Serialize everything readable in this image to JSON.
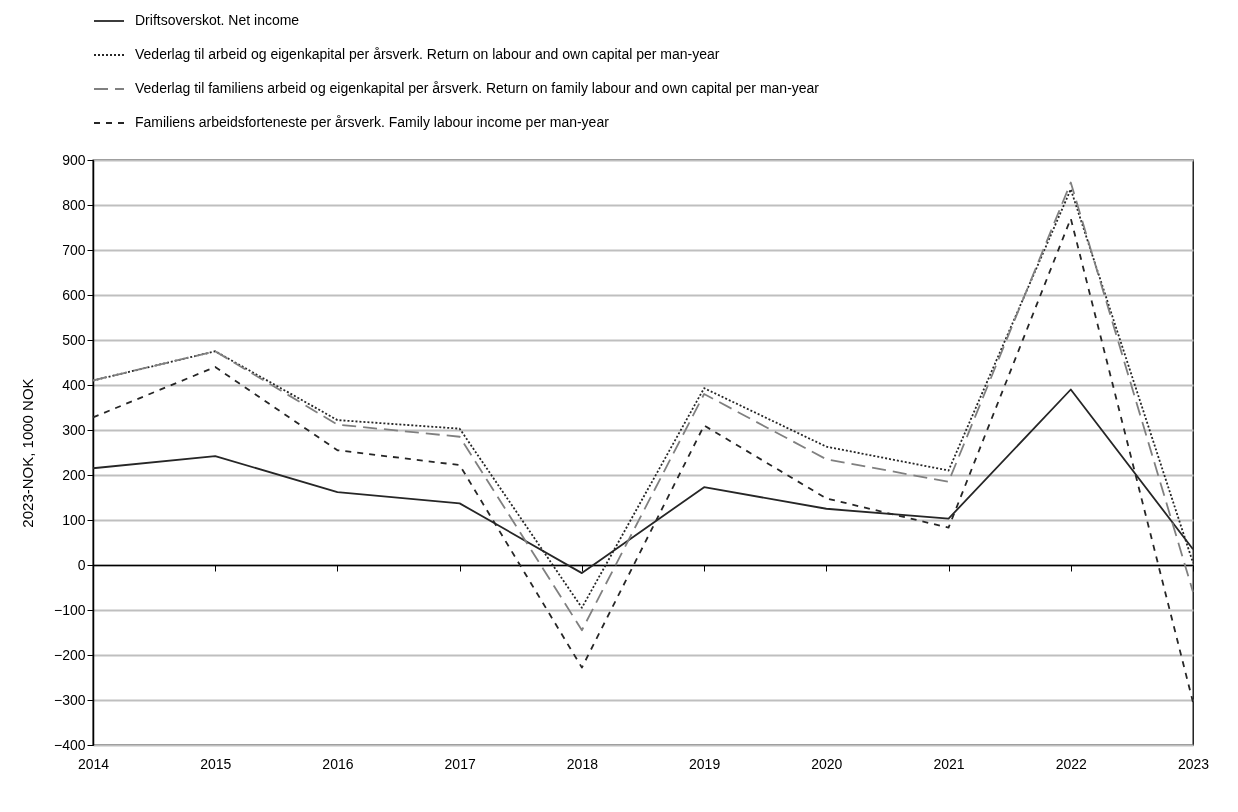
{
  "chart_data": {
    "type": "line",
    "ylabel": "2023-NOK, 1000 NOK",
    "x": [
      2014,
      2015,
      2016,
      2017,
      2018,
      2019,
      2020,
      2021,
      2022,
      2023
    ],
    "xlim": [
      2014,
      2023
    ],
    "xticks": [
      2014,
      2015,
      2016,
      2017,
      2018,
      2019,
      2020,
      2021,
      2022,
      2023
    ],
    "ylim": [
      -400,
      900
    ],
    "yticks": [
      -400,
      -300,
      -200,
      -100,
      0,
      100,
      200,
      300,
      400,
      500,
      600,
      700,
      800,
      900
    ],
    "grid": "y",
    "legend": "top left",
    "series": [
      {
        "name": "Driftsoverskot. Net income",
        "color": "#262626",
        "line_style": "solid",
        "values": [
          215,
          242,
          162,
          137,
          -18,
          173,
          125,
          103,
          390,
          35
        ]
      },
      {
        "name": "Vederlag til arbeid og eigenkapital per årsverk. Return on labour and own capital per man-year",
        "color": "#262626",
        "line_style": "dotted",
        "values": [
          410,
          475,
          322,
          303,
          -95,
          393,
          263,
          210,
          835,
          5
        ]
      },
      {
        "name": "Vederlag til familiens arbeid og eigenkapital per årsverk. Return on family labour and own capital per man-year",
        "color": "#808080",
        "line_style": "dashed",
        "values": [
          410,
          475,
          312,
          285,
          -145,
          380,
          235,
          185,
          850,
          -60
        ]
      },
      {
        "name": "Familiens arbeidsforteneste per årsverk. Family labour income per man-year",
        "color": "#262626",
        "line_style": "dashed",
        "values": [
          328,
          440,
          255,
          222,
          -228,
          310,
          148,
          83,
          770,
          -305
        ]
      }
    ]
  }
}
